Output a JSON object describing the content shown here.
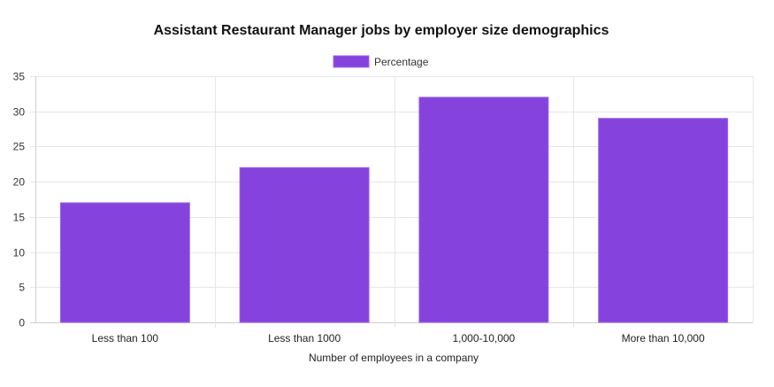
{
  "chart_data": {
    "type": "bar",
    "title": "Assistant Restaurant Manager jobs by employer size demographics",
    "xlabel": "Number of employees in a company",
    "ylabel": "",
    "categories": [
      "Less than 100",
      "Less than 1000",
      "1,000-10,000",
      "More than 10,000"
    ],
    "series": [
      {
        "name": "Percentage",
        "values": [
          17,
          22,
          32,
          29
        ],
        "color": "#8542dc",
        "border_color": "#9b6ae6"
      }
    ],
    "ylim": [
      0,
      35
    ],
    "yticks": [
      "0",
      "5",
      "10",
      "15",
      "20",
      "25",
      "30",
      "35"
    ],
    "grid": true,
    "legend_position": "top-center"
  }
}
